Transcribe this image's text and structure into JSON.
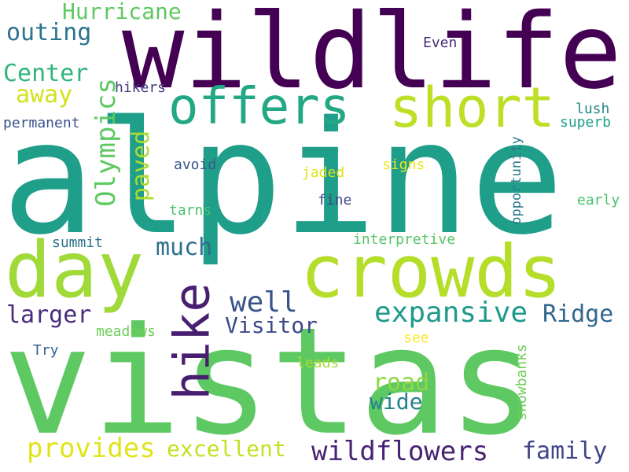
{
  "palette": {
    "dark_purple": "#440154",
    "indigo": "#3b528b",
    "slate_blue": "#2c728e",
    "teal": "#21918c",
    "sea_green": "#1f9e89",
    "green": "#35b779",
    "light_green": "#6ece58",
    "lime": "#b5de2b",
    "yellow": "#fde725"
  },
  "words": [
    {
      "text": "alpine",
      "color": "#1f9e89"
    },
    {
      "text": "vistas",
      "color": "#5ec962"
    },
    {
      "text": "wildlife",
      "color": "#440154"
    },
    {
      "text": "crowds",
      "color": "#b5de2b"
    },
    {
      "text": "day",
      "color": "#a0da39"
    },
    {
      "text": "offers",
      "color": "#22a884"
    },
    {
      "text": "short",
      "color": "#bddf26"
    },
    {
      "text": "hike",
      "color": "#481f70"
    },
    {
      "text": "expansive",
      "color": "#1f9a8a"
    },
    {
      "text": "wildflowers",
      "color": "#482374"
    },
    {
      "text": "provides",
      "color": "#e0e41a"
    },
    {
      "text": "excellent",
      "color": "#c5e021"
    },
    {
      "text": "family",
      "color": "#414487"
    },
    {
      "text": "Olympics",
      "color": "#5ec962"
    },
    {
      "text": "well",
      "color": "#3b528b"
    },
    {
      "text": "Visitor",
      "color": "#3e4a89"
    },
    {
      "text": "Ridge",
      "color": "#31688e"
    },
    {
      "text": "larger",
      "color": "#472d7b"
    },
    {
      "text": "much",
      "color": "#2d708e"
    },
    {
      "text": "road",
      "color": "#8fd744"
    },
    {
      "text": "wide",
      "color": "#26828e"
    },
    {
      "text": "paved",
      "color": "#addc30"
    },
    {
      "text": "Hurricane",
      "color": "#5ec962"
    },
    {
      "text": "outing",
      "color": "#2c728e"
    },
    {
      "text": "Center",
      "color": "#2fb47c"
    },
    {
      "text": "away",
      "color": "#d2e21b"
    },
    {
      "text": "permanent",
      "color": "#3b528b"
    },
    {
      "text": "hikers",
      "color": "#443a83"
    },
    {
      "text": "Even",
      "color": "#472c7a"
    },
    {
      "text": "lush",
      "color": "#23898e"
    },
    {
      "text": "superb",
      "color": "#1fa188"
    },
    {
      "text": "opportunity",
      "color": "#2a788e"
    },
    {
      "text": "avoid",
      "color": "#39568c"
    },
    {
      "text": "jaded",
      "color": "#dde318"
    },
    {
      "text": "signs",
      "color": "#f1e51d"
    },
    {
      "text": "fine",
      "color": "#3e4989"
    },
    {
      "text": "tarns",
      "color": "#4ac16d"
    },
    {
      "text": "early",
      "color": "#4ac16d"
    },
    {
      "text": "summit",
      "color": "#2c728e"
    },
    {
      "text": "interpretive",
      "color": "#54c568"
    },
    {
      "text": "meadows",
      "color": "#6ece58"
    },
    {
      "text": "Try",
      "color": "#33638d"
    },
    {
      "text": "see",
      "color": "#fde725"
    },
    {
      "text": "leads",
      "color": "#a8db34"
    },
    {
      "text": "snowbanks",
      "color": "#6ece58"
    }
  ]
}
